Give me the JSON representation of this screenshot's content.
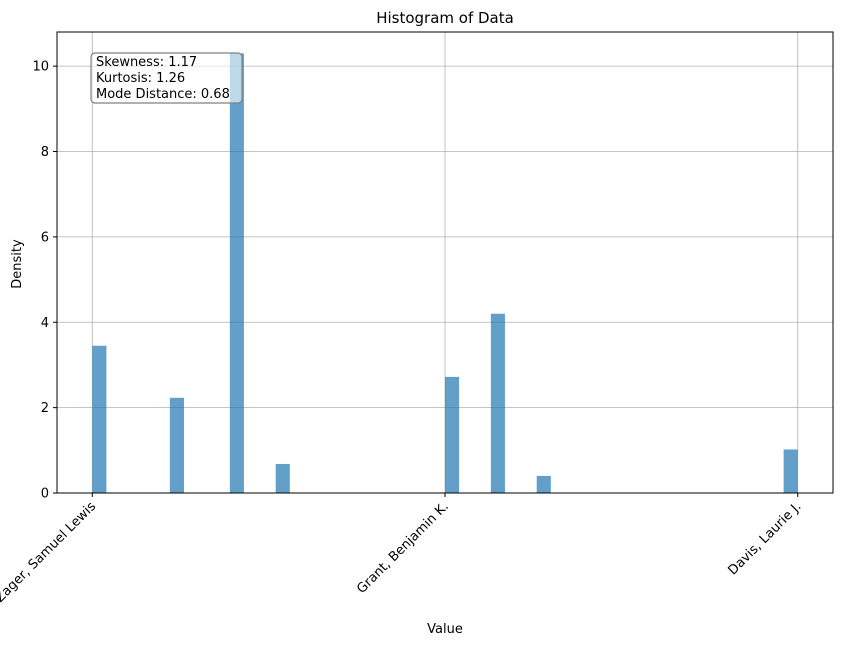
{
  "chart_data": {
    "type": "bar",
    "title": "Histogram of Data",
    "xlabel": "Value",
    "ylabel": "Density",
    "xlim": [
      -0.05,
      1.05
    ],
    "ylim": [
      0,
      10.8
    ],
    "xticks": [
      {
        "label": "Zager, Samuel Lewis",
        "value": 0
      },
      {
        "label": "Grant, Benjamin K.",
        "value": 0.5
      },
      {
        "label": "Davis, Laurie J.",
        "value": 1
      }
    ],
    "yticks": [
      0,
      2,
      4,
      6,
      8,
      10
    ],
    "bin_width": 0.02,
    "bars": [
      {
        "x0": 0.0,
        "x1": 0.02,
        "value": 3.45
      },
      {
        "x0": 0.11,
        "x1": 0.13,
        "value": 2.23
      },
      {
        "x0": 0.195,
        "x1": 0.215,
        "value": 10.3
      },
      {
        "x0": 0.26,
        "x1": 0.28,
        "value": 0.68
      },
      {
        "x0": 0.5,
        "x1": 0.52,
        "value": 2.72
      },
      {
        "x0": 0.565,
        "x1": 0.585,
        "value": 4.2
      },
      {
        "x0": 0.63,
        "x1": 0.65,
        "value": 0.4
      },
      {
        "x0": 0.98,
        "x1": 1.0,
        "value": 1.02
      }
    ],
    "bar_color": "#1f77b4",
    "bar_opacity": 0.7,
    "grid": true,
    "annotation": {
      "lines": [
        "Skewness: 1.17",
        "Kurtosis: 1.26",
        "Mode Distance: 0.68"
      ],
      "placement": "top-left"
    }
  }
}
